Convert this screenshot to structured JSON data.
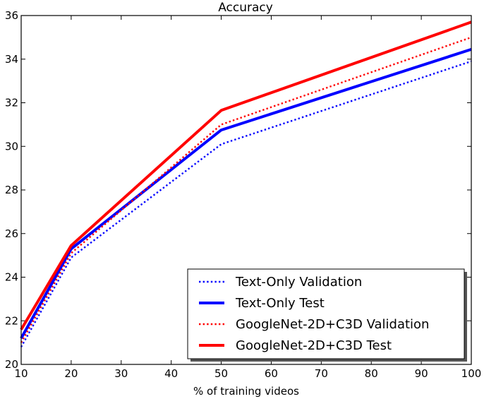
{
  "chart_data": {
    "type": "line",
    "title": "Accuracy",
    "xlabel": "% of training videos",
    "ylabel": "",
    "x": [
      10,
      20,
      50,
      100
    ],
    "xlim": [
      10,
      100
    ],
    "ylim": [
      20,
      36
    ],
    "xticks": [
      10,
      20,
      30,
      40,
      50,
      60,
      70,
      80,
      90,
      100
    ],
    "yticks": [
      20,
      22,
      24,
      26,
      28,
      30,
      32,
      34,
      36
    ],
    "grid": false,
    "legend_position": "bottom-right",
    "series": [
      {
        "name": "Text-Only Validation",
        "values": [
          20.8,
          24.9,
          30.1,
          33.9
        ],
        "color": "#0000ff",
        "style": "dotted"
      },
      {
        "name": "Text-Only Test",
        "values": [
          21.2,
          25.3,
          30.75,
          34.45
        ],
        "color": "#0000ff",
        "style": "solid"
      },
      {
        "name": "GoogleNet-2D+C3D Validation",
        "values": [
          21.0,
          25.1,
          31.0,
          35.0
        ],
        "color": "#ff0000",
        "style": "dotted"
      },
      {
        "name": "GoogleNet-2D+C3D Test",
        "values": [
          21.6,
          25.45,
          31.65,
          35.7
        ],
        "color": "#ff0000",
        "style": "solid"
      }
    ]
  }
}
